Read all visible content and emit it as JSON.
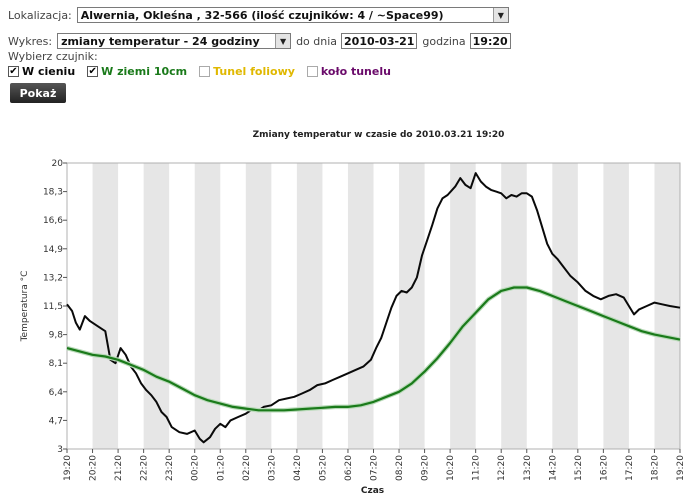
{
  "form": {
    "location_label": "Lokalizacja:",
    "location_value": "Alwernia, Okleśna , 32-566 (ilość czujników: 4 / ~Space99)",
    "chart_label": "Wykres:",
    "chart_value": "zmiany temperatur - 24 godziny",
    "date_label": "do dnia",
    "date_value": "2010-03-21",
    "hour_label": "godzina",
    "hour_value": "19:20",
    "sensor_label": "Wybierz czujnik:",
    "sensors": [
      {
        "label": "W cieniu",
        "checked": true,
        "color": "#0a0a0a"
      },
      {
        "label": "W ziemi 10cm",
        "checked": true,
        "color": "#1a7a1a"
      },
      {
        "label": "Tunel foliowy",
        "checked": false,
        "color": "#e0b800"
      },
      {
        "label": "koło tunelu",
        "checked": false,
        "color": "#6a0a6a"
      }
    ],
    "submit_label": "Pokaż",
    "check_glyph": "✔",
    "arrow_glyph": "▼"
  },
  "chart_data": {
    "type": "line",
    "title": "Zmiany temperatur w czasie do 2010.03.21 19:20",
    "xlabel": "Czas",
    "ylabel": "Temperatura °C",
    "ylim": [
      3,
      20
    ],
    "y_ticks": [
      "3",
      "4,7",
      "6,4",
      "8,1",
      "9,8",
      "11,5",
      "13,2",
      "14,9",
      "16,6",
      "18,3",
      "20"
    ],
    "x_ticks": [
      "19:20",
      "20:20",
      "21:20",
      "22:20",
      "23:20",
      "00:20",
      "01:20",
      "02:20",
      "03:20",
      "04:20",
      "05:20",
      "06:20",
      "07:20",
      "08:20",
      "09:20",
      "10:20",
      "11:20",
      "12:20",
      "13:20",
      "14:20",
      "15:20",
      "16:20",
      "17:20",
      "18:20",
      "19:20"
    ],
    "grid": "alternating vertical bands",
    "series": [
      {
        "name": "W cieniu",
        "color": "#0a0a0a",
        "points": [
          [
            0,
            11.6
          ],
          [
            0.2,
            11.2
          ],
          [
            0.35,
            10.5
          ],
          [
            0.5,
            10.1
          ],
          [
            0.7,
            10.9
          ],
          [
            0.9,
            10.6
          ],
          [
            1.2,
            10.3
          ],
          [
            1.5,
            10.0
          ],
          [
            1.7,
            8.3
          ],
          [
            1.9,
            8.1
          ],
          [
            2.1,
            9.0
          ],
          [
            2.3,
            8.6
          ],
          [
            2.5,
            7.9
          ],
          [
            2.7,
            7.5
          ],
          [
            2.9,
            6.9
          ],
          [
            3.1,
            6.5
          ],
          [
            3.3,
            6.2
          ],
          [
            3.5,
            5.8
          ],
          [
            3.7,
            5.2
          ],
          [
            3.9,
            4.9
          ],
          [
            4.1,
            4.3
          ],
          [
            4.4,
            4.0
          ],
          [
            4.7,
            3.9
          ],
          [
            5.0,
            4.1
          ],
          [
            5.2,
            3.6
          ],
          [
            5.35,
            3.4
          ],
          [
            5.6,
            3.7
          ],
          [
            5.8,
            4.2
          ],
          [
            6.0,
            4.5
          ],
          [
            6.2,
            4.3
          ],
          [
            6.4,
            4.7
          ],
          [
            6.7,
            4.9
          ],
          [
            7.0,
            5.1
          ],
          [
            7.3,
            5.4
          ],
          [
            7.5,
            5.3
          ],
          [
            7.7,
            5.5
          ],
          [
            8.0,
            5.6
          ],
          [
            8.3,
            5.9
          ],
          [
            8.6,
            6.0
          ],
          [
            8.9,
            6.1
          ],
          [
            9.2,
            6.3
          ],
          [
            9.5,
            6.5
          ],
          [
            9.8,
            6.8
          ],
          [
            10.1,
            6.9
          ],
          [
            10.4,
            7.1
          ],
          [
            10.7,
            7.3
          ],
          [
            11.0,
            7.5
          ],
          [
            11.3,
            7.7
          ],
          [
            11.6,
            7.9
          ],
          [
            11.9,
            8.3
          ],
          [
            12.1,
            9.0
          ],
          [
            12.3,
            9.6
          ],
          [
            12.5,
            10.5
          ],
          [
            12.7,
            11.4
          ],
          [
            12.9,
            12.1
          ],
          [
            13.1,
            12.4
          ],
          [
            13.3,
            12.3
          ],
          [
            13.5,
            12.6
          ],
          [
            13.7,
            13.2
          ],
          [
            13.9,
            14.5
          ],
          [
            14.1,
            15.4
          ],
          [
            14.3,
            16.3
          ],
          [
            14.5,
            17.3
          ],
          [
            14.7,
            17.9
          ],
          [
            14.9,
            18.1
          ],
          [
            15.2,
            18.6
          ],
          [
            15.4,
            19.1
          ],
          [
            15.6,
            18.7
          ],
          [
            15.8,
            18.5
          ],
          [
            16.0,
            19.4
          ],
          [
            16.2,
            18.9
          ],
          [
            16.4,
            18.6
          ],
          [
            16.6,
            18.4
          ],
          [
            16.8,
            18.3
          ],
          [
            17.0,
            18.2
          ],
          [
            17.2,
            17.9
          ],
          [
            17.4,
            18.1
          ],
          [
            17.6,
            18.0
          ],
          [
            17.8,
            18.2
          ],
          [
            18.0,
            18.2
          ],
          [
            18.2,
            18.0
          ],
          [
            18.4,
            17.2
          ],
          [
            18.6,
            16.2
          ],
          [
            18.8,
            15.2
          ],
          [
            19.0,
            14.6
          ],
          [
            19.2,
            14.3
          ],
          [
            19.4,
            13.9
          ],
          [
            19.7,
            13.3
          ],
          [
            20.0,
            12.9
          ],
          [
            20.3,
            12.4
          ],
          [
            20.6,
            12.1
          ],
          [
            20.9,
            11.9
          ],
          [
            21.2,
            12.1
          ],
          [
            21.5,
            12.2
          ],
          [
            21.8,
            12.0
          ],
          [
            22.0,
            11.5
          ],
          [
            22.2,
            11.0
          ],
          [
            22.4,
            11.3
          ],
          [
            22.7,
            11.5
          ],
          [
            23.0,
            11.7
          ],
          [
            23.3,
            11.6
          ],
          [
            23.6,
            11.5
          ],
          [
            24.0,
            11.4
          ]
        ]
      },
      {
        "name": "W ziemi 10cm",
        "color": "#1a7a1a",
        "points": [
          [
            0,
            9.0
          ],
          [
            0.5,
            8.8
          ],
          [
            1,
            8.6
          ],
          [
            1.5,
            8.5
          ],
          [
            2,
            8.3
          ],
          [
            2.5,
            8.0
          ],
          [
            3,
            7.7
          ],
          [
            3.5,
            7.3
          ],
          [
            4,
            7.0
          ],
          [
            4.5,
            6.6
          ],
          [
            5,
            6.2
          ],
          [
            5.5,
            5.9
          ],
          [
            6,
            5.7
          ],
          [
            6.5,
            5.5
          ],
          [
            7,
            5.4
          ],
          [
            7.5,
            5.3
          ],
          [
            8,
            5.3
          ],
          [
            8.5,
            5.3
          ],
          [
            9,
            5.35
          ],
          [
            9.5,
            5.4
          ],
          [
            10,
            5.45
          ],
          [
            10.5,
            5.5
          ],
          [
            11,
            5.5
          ],
          [
            11.5,
            5.6
          ],
          [
            12,
            5.8
          ],
          [
            12.5,
            6.1
          ],
          [
            13,
            6.4
          ],
          [
            13.5,
            6.9
          ],
          [
            14,
            7.6
          ],
          [
            14.5,
            8.4
          ],
          [
            15,
            9.3
          ],
          [
            15.5,
            10.3
          ],
          [
            16,
            11.1
          ],
          [
            16.5,
            11.9
          ],
          [
            17,
            12.4
          ],
          [
            17.5,
            12.6
          ],
          [
            18,
            12.6
          ],
          [
            18.5,
            12.4
          ],
          [
            19,
            12.1
          ],
          [
            19.5,
            11.8
          ],
          [
            20,
            11.5
          ],
          [
            20.5,
            11.2
          ],
          [
            21,
            10.9
          ],
          [
            21.5,
            10.6
          ],
          [
            22,
            10.3
          ],
          [
            22.5,
            10.0
          ],
          [
            23,
            9.8
          ],
          [
            23.5,
            9.65
          ],
          [
            24,
            9.5
          ]
        ]
      }
    ]
  }
}
